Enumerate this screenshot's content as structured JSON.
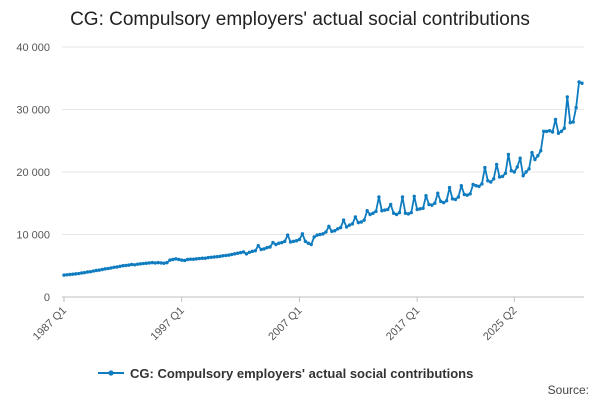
{
  "chart_data": {
    "type": "line",
    "title": "CG: Compulsory employers' actual social contributions",
    "xlabel": "",
    "ylabel": "",
    "x_tick_labels": [
      "1987 Q1",
      "1997 Q1",
      "2007 Q1",
      "2017 Q1",
      "2025 Q2"
    ],
    "y_tick_labels": [
      "0",
      "10 000",
      "20 000",
      "30 000",
      "40 000"
    ],
    "y_ticks": [
      0,
      10000,
      20000,
      30000,
      40000
    ],
    "ylim": [
      0,
      40000
    ],
    "grid": true,
    "legend_position": "bottom",
    "source_label": "Source:",
    "color": "#0f7cbf",
    "series": [
      {
        "name": "CG: Compulsory employers' actual social contributions",
        "start": "1987 Q1",
        "frequency": "quarterly",
        "values": [
          3500,
          3550,
          3600,
          3650,
          3700,
          3750,
          3850,
          3900,
          4000,
          4050,
          4150,
          4250,
          4300,
          4400,
          4500,
          4550,
          4650,
          4750,
          4800,
          4900,
          5000,
          5050,
          5100,
          5200,
          5150,
          5250,
          5300,
          5350,
          5400,
          5450,
          5500,
          5450,
          5500,
          5450,
          5400,
          5500,
          5900,
          6000,
          6100,
          6000,
          5900,
          5850,
          6000,
          6050,
          6050,
          6100,
          6150,
          6200,
          6200,
          6300,
          6350,
          6400,
          6450,
          6500,
          6600,
          6650,
          6700,
          6800,
          6900,
          7000,
          7100,
          7200,
          6900,
          7150,
          7300,
          7400,
          8200,
          7600,
          7700,
          7900,
          8000,
          8700,
          8400,
          8600,
          8700,
          8900,
          9900,
          8800,
          8900,
          9000,
          9200,
          10100,
          8900,
          8600,
          8400,
          9600,
          9900,
          10000,
          10100,
          10400,
          11300,
          10500,
          10600,
          10900,
          11100,
          12300,
          11200,
          11500,
          11700,
          12800,
          11900,
          12000,
          12300,
          13800,
          13200,
          13400,
          13700,
          16000,
          13800,
          13900,
          14000,
          14800,
          13400,
          13200,
          13500,
          16000,
          13400,
          13300,
          13500,
          16100,
          14000,
          14100,
          14200,
          16200,
          14800,
          14700,
          15000,
          16600,
          15300,
          15100,
          15400,
          17500,
          15700,
          15600,
          16000,
          17800,
          16400,
          16300,
          16500,
          18000,
          17800,
          17700,
          18100,
          20700,
          18600,
          18400,
          18900,
          21200,
          19200,
          19300,
          19800,
          22800,
          20200,
          20000,
          20800,
          22200,
          19400,
          20000,
          20500,
          23100,
          22000,
          22600,
          23400,
          26500,
          26500,
          26600,
          26400,
          28400,
          26200,
          26500,
          27000,
          32000,
          27900,
          28000,
          30300,
          34400,
          34200
        ]
      }
    ]
  }
}
